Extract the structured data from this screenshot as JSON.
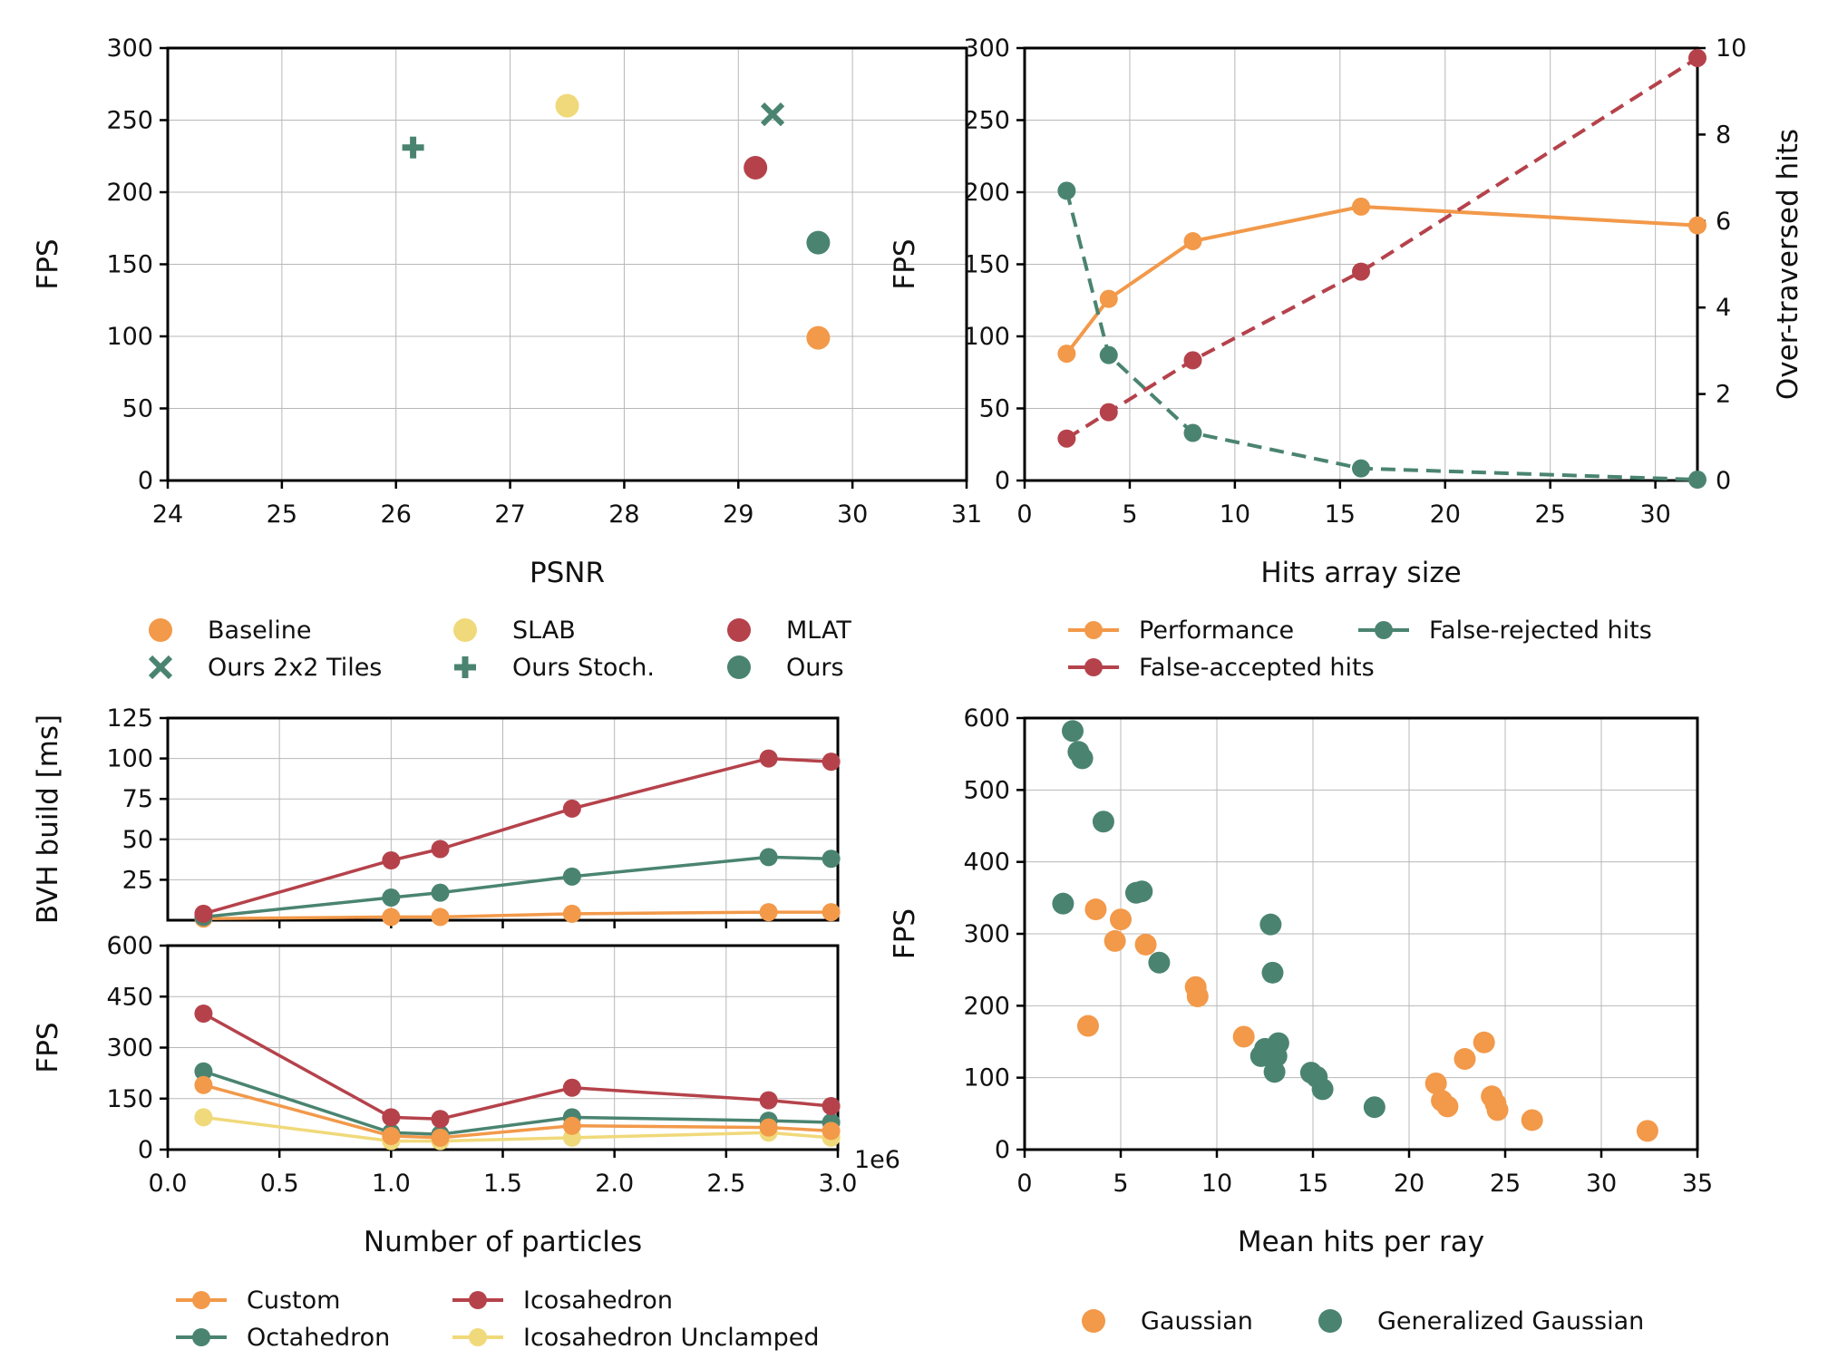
{
  "colors": {
    "orange": "#F2994A",
    "yellow": "#F0D97A",
    "red": "#B5424B",
    "green": "#4A8470"
  },
  "chart_data": [
    {
      "id": "psnr-fps",
      "type": "scatter",
      "xlabel": "PSNR",
      "ylabel": "FPS",
      "xlim": [
        24,
        31
      ],
      "ylim": [
        0,
        300
      ],
      "xticks": [
        "24",
        "25",
        "26",
        "27",
        "28",
        "29",
        "30",
        "31"
      ],
      "yticks": [
        "0",
        "50",
        "100",
        "150",
        "200",
        "250",
        "300"
      ],
      "grid": true,
      "legend_placement": "bottom",
      "series": [
        {
          "name": "Baseline",
          "color": "#F2994A",
          "marker": "circle",
          "points": [
            [
              29.7,
              99
            ]
          ]
        },
        {
          "name": "SLAB",
          "color": "#F0D97A",
          "marker": "circle",
          "points": [
            [
              27.5,
              260
            ]
          ]
        },
        {
          "name": "MLAT",
          "color": "#B5424B",
          "marker": "circle",
          "points": [
            [
              29.15,
              217
            ]
          ]
        },
        {
          "name": "Ours 2x2 Tiles",
          "color": "#4A8470",
          "marker": "x",
          "points": [
            [
              29.3,
              254
            ]
          ]
        },
        {
          "name": "Ours Stoch.",
          "color": "#4A8470",
          "marker": "plus",
          "points": [
            [
              26.15,
              231
            ]
          ]
        },
        {
          "name": "Ours",
          "color": "#4A8470",
          "marker": "circle",
          "points": [
            [
              29.7,
              165
            ]
          ]
        }
      ]
    },
    {
      "id": "hits-array",
      "type": "line",
      "xlabel": "Hits array size",
      "ylabel": "FPS",
      "ylabel_right": "Over-traversed hits",
      "xlim": [
        0,
        32
      ],
      "ylim": [
        0,
        300
      ],
      "ylim_right": [
        0,
        10
      ],
      "xticks": [
        "0",
        "5",
        "10",
        "15",
        "20",
        "25",
        "30"
      ],
      "yticks": [
        "0",
        "50",
        "100",
        "150",
        "200",
        "250",
        "300"
      ],
      "yticks_right": [
        "0",
        "2",
        "4",
        "6",
        "8",
        "10"
      ],
      "grid": true,
      "legend_placement": "bottom",
      "series": [
        {
          "name": "Performance",
          "color": "#F2994A",
          "axis": "left",
          "style": "solid",
          "x": [
            2,
            4,
            8,
            16,
            32
          ],
          "y": [
            88,
            126,
            166,
            190,
            177
          ]
        },
        {
          "name": "False-rejected hits",
          "color": "#4A8470",
          "axis": "right",
          "style": "dashed",
          "x": [
            2,
            4,
            8,
            16,
            32
          ],
          "y": [
            6.7,
            2.9,
            1.1,
            0.28,
            0.02
          ]
        },
        {
          "name": "False-accepted hits",
          "color": "#B5424B",
          "axis": "right",
          "style": "dashed",
          "x": [
            2,
            4,
            8,
            16,
            32
          ],
          "y": [
            0.97,
            1.58,
            2.78,
            4.83,
            9.77
          ]
        }
      ]
    },
    {
      "id": "bvh-build",
      "type": "line",
      "xlabel": "",
      "ylabel": "BVH build [ms]",
      "xlim": [
        0,
        3.0
      ],
      "ylim": [
        0,
        125
      ],
      "xticks": [],
      "yticks": [
        "25",
        "50",
        "75",
        "100",
        "125"
      ],
      "grid": true,
      "series": [
        {
          "name": "Custom",
          "color": "#F2994A",
          "x": [
            0.16,
            1.0,
            1.22,
            1.81,
            2.69,
            2.97
          ],
          "y": [
            1,
            2,
            2,
            4,
            5,
            5
          ]
        },
        {
          "name": "Octahedron",
          "color": "#4A8470",
          "x": [
            0.16,
            1.0,
            1.22,
            1.81,
            2.69,
            2.97
          ],
          "y": [
            2,
            14,
            17,
            27,
            39,
            38
          ]
        },
        {
          "name": "Icosahedron",
          "color": "#B5424B",
          "x": [
            0.16,
            1.0,
            1.22,
            1.81,
            2.69,
            2.97
          ],
          "y": [
            4,
            37,
            44,
            69,
            100,
            98
          ]
        }
      ]
    },
    {
      "id": "particles-fps",
      "type": "line",
      "xlabel": "Number of particles",
      "ylabel": "FPS",
      "offset_text": "1e6",
      "xlim": [
        0,
        3.0
      ],
      "ylim": [
        0,
        600
      ],
      "xticks": [
        "0.0",
        "0.5",
        "1.0",
        "1.5",
        "2.0",
        "2.5",
        "3.0"
      ],
      "yticks": [
        "0",
        "150",
        "300",
        "450",
        "600"
      ],
      "grid": true,
      "legend_placement": "bottom",
      "series": [
        {
          "name": "Custom",
          "color": "#F2994A",
          "x": [
            0.16,
            1.0,
            1.22,
            1.81,
            2.69,
            2.97
          ],
          "y": [
            190,
            40,
            35,
            70,
            65,
            55
          ]
        },
        {
          "name": "Icosahedron",
          "color": "#B5424B",
          "x": [
            0.16,
            1.0,
            1.22,
            1.81,
            2.69,
            2.97
          ],
          "y": [
            400,
            95,
            90,
            182,
            145,
            128
          ]
        },
        {
          "name": "Octahedron",
          "color": "#4A8470",
          "x": [
            0.16,
            1.0,
            1.22,
            1.81,
            2.69,
            2.97
          ],
          "y": [
            230,
            50,
            45,
            95,
            85,
            80
          ]
        },
        {
          "name": "Icosahedron Unclamped",
          "color": "#F0D97A",
          "x": [
            0.16,
            1.0,
            1.22,
            1.81,
            2.69,
            2.97
          ],
          "y": [
            95,
            25,
            25,
            35,
            50,
            35
          ]
        }
      ]
    },
    {
      "id": "hits-per-ray",
      "type": "scatter",
      "xlabel": "Mean hits per ray",
      "ylabel": "FPS",
      "xlim": [
        0,
        35
      ],
      "ylim": [
        0,
        600
      ],
      "xticks": [
        "0",
        "5",
        "10",
        "15",
        "20",
        "25",
        "30",
        "35"
      ],
      "yticks": [
        "0",
        "100",
        "200",
        "300",
        "400",
        "500",
        "600"
      ],
      "grid": true,
      "legend_placement": "bottom",
      "series": [
        {
          "name": "Gaussian",
          "color": "#F2994A",
          "points": [
            [
              3.3,
              172
            ],
            [
              3.7,
              334
            ],
            [
              4.7,
              290
            ],
            [
              5.0,
              320
            ],
            [
              6.3,
              285
            ],
            [
              8.9,
              226
            ],
            [
              9.0,
              213
            ],
            [
              11.4,
              157
            ],
            [
              21.4,
              92
            ],
            [
              21.7,
              68
            ],
            [
              22.0,
              60
            ],
            [
              22.9,
              126
            ],
            [
              23.9,
              149
            ],
            [
              24.3,
              74
            ],
            [
              24.5,
              64
            ],
            [
              24.6,
              55
            ],
            [
              26.4,
              41
            ],
            [
              32.4,
              26
            ]
          ]
        },
        {
          "name": "Generalized Gaussian",
          "color": "#4A8470",
          "points": [
            [
              2.0,
              342
            ],
            [
              2.5,
              582
            ],
            [
              2.8,
              553
            ],
            [
              3.0,
              544
            ],
            [
              4.1,
              456
            ],
            [
              5.8,
              357
            ],
            [
              6.1,
              359
            ],
            [
              7.0,
              260
            ],
            [
              12.3,
              130
            ],
            [
              12.5,
              140
            ],
            [
              12.8,
              313
            ],
            [
              12.9,
              246
            ],
            [
              13.0,
              108
            ],
            [
              13.1,
              130
            ],
            [
              13.2,
              148
            ],
            [
              14.9,
              107
            ],
            [
              15.2,
              101
            ],
            [
              15.5,
              84
            ],
            [
              18.2,
              59
            ]
          ]
        }
      ]
    }
  ],
  "legends": {
    "psnr": [
      {
        "label": "Baseline",
        "marker": "circle",
        "color": "#F2994A"
      },
      {
        "label": "SLAB",
        "marker": "circle",
        "color": "#F0D97A"
      },
      {
        "label": "MLAT",
        "marker": "circle",
        "color": "#B5424B"
      },
      {
        "label": "Ours 2x2 Tiles",
        "marker": "x",
        "color": "#4A8470"
      },
      {
        "label": "Ours Stoch.",
        "marker": "plus",
        "color": "#4A8470"
      },
      {
        "label": "Ours",
        "marker": "circle",
        "color": "#4A8470"
      }
    ],
    "hits": [
      {
        "label": "Performance",
        "marker": "line",
        "color": "#F2994A"
      },
      {
        "label": "False-rejected hits",
        "marker": "line",
        "color": "#4A8470"
      },
      {
        "label": "False-accepted hits",
        "marker": "line",
        "color": "#B5424B"
      }
    ],
    "particles": [
      {
        "label": "Custom",
        "marker": "line",
        "color": "#F2994A"
      },
      {
        "label": "Icosahedron",
        "marker": "line",
        "color": "#B5424B"
      },
      {
        "label": "Octahedron",
        "marker": "line",
        "color": "#4A8470"
      },
      {
        "label": "Icosahedron Unclamped",
        "marker": "line",
        "color": "#F0D97A"
      }
    ],
    "gauss": [
      {
        "label": "Gaussian",
        "marker": "circle",
        "color": "#F2994A"
      },
      {
        "label": "Generalized Gaussian",
        "marker": "circle",
        "color": "#4A8470"
      }
    ]
  }
}
